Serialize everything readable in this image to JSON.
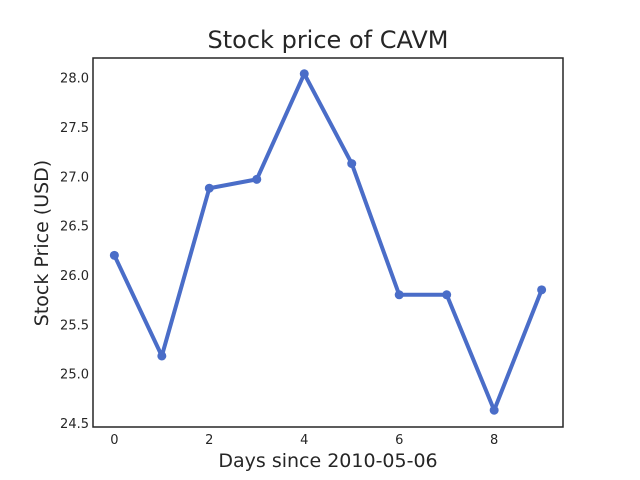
{
  "chart_data": {
    "type": "line",
    "title": "Stock price of CAVM",
    "xlabel": "Days since 2010-05-06",
    "ylabel": "Stock Price (USD)",
    "x": [
      0,
      1,
      2,
      3,
      4,
      5,
      6,
      7,
      8,
      9
    ],
    "series": [
      {
        "values": [
          26.2,
          25.18,
          26.88,
          26.97,
          28.04,
          27.13,
          25.8,
          25.8,
          24.63,
          25.85
        ]
      }
    ],
    "xlim": [
      -0.45,
      9.45
    ],
    "ylim": [
      24.46,
      28.2
    ],
    "xticks": [
      "0",
      "2",
      "4",
      "6",
      "8"
    ],
    "yticks": [
      "24.5",
      "25.0",
      "25.5",
      "26.0",
      "26.5",
      "27.0",
      "27.5",
      "28.0"
    ],
    "grid": false,
    "legend": "none",
    "colors": {
      "line": "#4a6dc8",
      "axes": "#262626",
      "text": "#262626"
    }
  }
}
